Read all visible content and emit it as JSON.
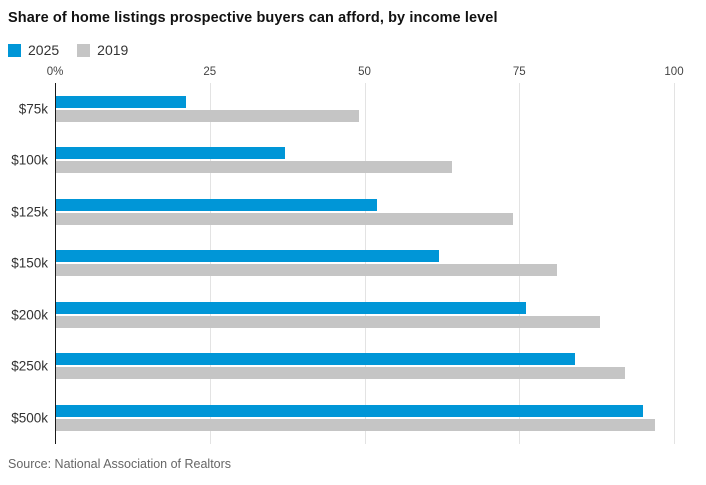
{
  "title": "Share of home listings prospective buyers can afford, by income level",
  "source": "Source: National Association of Realtors",
  "colors": {
    "series_2025": "#0096d7",
    "series_2019": "#c5c5c5",
    "gridline": "#e3e3e3",
    "axis_line": "#1a1a1a"
  },
  "legend": [
    {
      "label": "2025",
      "color": "#0096d7"
    },
    {
      "label": "2019",
      "color": "#c5c5c5"
    }
  ],
  "chart_data": {
    "type": "bar",
    "orientation": "horizontal",
    "title": "Share of home listings prospective buyers can afford, by income level",
    "categories": [
      "$75k",
      "$100k",
      "$125k",
      "$150k",
      "$200k",
      "$250k",
      "$500k"
    ],
    "series": [
      {
        "name": "2025",
        "color": "#0096d7",
        "values": [
          21,
          37,
          52,
          62,
          76,
          84,
          95
        ]
      },
      {
        "name": "2019",
        "color": "#c5c5c5",
        "values": [
          49,
          64,
          74,
          81,
          88,
          92,
          97
        ]
      }
    ],
    "xlabel": "",
    "ylabel": "",
    "xlim": [
      0,
      100
    ],
    "x_ticks": [
      {
        "label": "0%",
        "value": 0
      },
      {
        "label": "25",
        "value": 25
      },
      {
        "label": "50",
        "value": 50
      },
      {
        "label": "75",
        "value": 75
      },
      {
        "label": "100",
        "value": 100
      }
    ],
    "grid": true,
    "legend_position": "top-left"
  }
}
